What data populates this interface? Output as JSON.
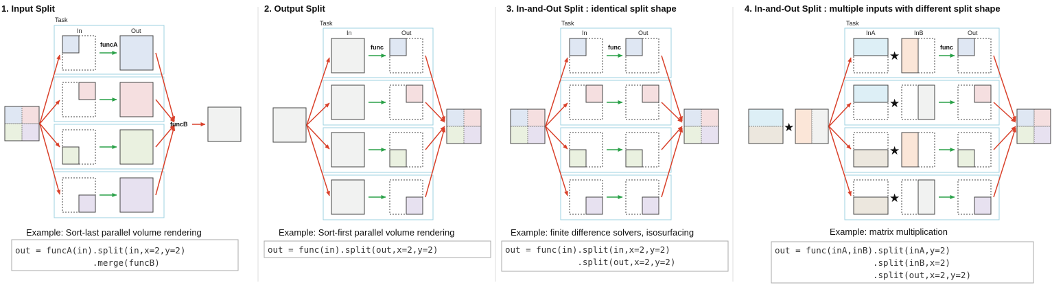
{
  "colors": {
    "blue": "#dfe7f3",
    "red": "#f5dfe0",
    "green": "#eaf1e0",
    "purple": "#e7e1f0",
    "gray": "#f1f2f1",
    "peach": "#fbe6d8",
    "cyan": "#ddeff6",
    "beige": "#ece7de",
    "task_border": "#9cd2e0",
    "red_arrow": "#d9412b",
    "green_arrow": "#2aa148"
  },
  "panels": [
    {
      "title": "1. Input Split",
      "task_label": "Task",
      "col_labels": [
        "In",
        "Out"
      ],
      "func_label": "funcA",
      "merge_label": "funcB",
      "caption": "Example: Sort-last parallel volume rendering",
      "code": [
        "out = funcA(in).split(in,x=2,y=2)",
        "               .merge(funcB)"
      ]
    },
    {
      "title": "2. Output Split",
      "task_label": "Task",
      "col_labels": [
        "In",
        "Out"
      ],
      "func_label": "func",
      "caption": "Example: Sort-first parallel volume rendering",
      "code": [
        "out = func(in).split(out,x=2,y=2)"
      ]
    },
    {
      "title": "3. In-and-Out Split : identical split shape",
      "task_label": "Task",
      "col_labels": [
        "In",
        "Out"
      ],
      "func_label": "func",
      "caption": "Example: finite difference solvers, isosurfacing",
      "code": [
        "out = func(in).split(in,x=2,y=2)",
        "              .split(out,x=2,y=2)"
      ]
    },
    {
      "title": "4. In-and-Out Split : multiple inputs with different split shape",
      "task_label": "Task",
      "col_labels": [
        "InA",
        "InB",
        "Out"
      ],
      "func_label": "func",
      "caption": "Example: matrix multiplication",
      "code": [
        "out = func(inA,inB).split(inA,y=2)",
        "                   .split(inB,x=2)",
        "                   .split(out,x=2,y=2)"
      ]
    }
  ]
}
